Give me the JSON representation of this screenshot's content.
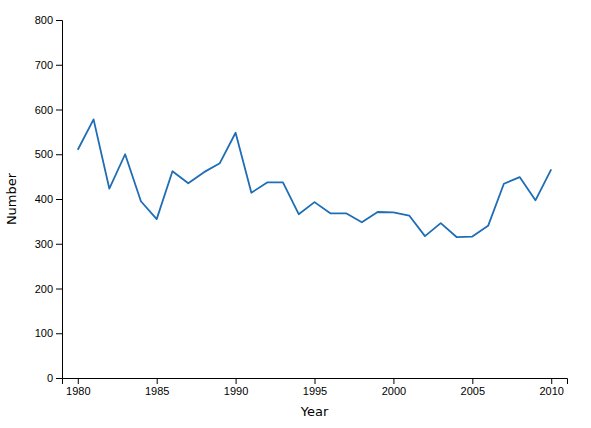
{
  "chart_data": {
    "type": "line",
    "xlabel": "Year",
    "ylabel": "Number",
    "x": [
      1980,
      1981,
      1982,
      1983,
      1984,
      1985,
      1986,
      1987,
      1988,
      1989,
      1990,
      1991,
      1992,
      1993,
      1994,
      1995,
      1996,
      1997,
      1998,
      1999,
      2000,
      2001,
      2002,
      2003,
      2004,
      2005,
      2006,
      2007,
      2008,
      2009,
      2010
    ],
    "values": [
      510,
      578,
      423,
      500,
      395,
      355,
      462,
      435,
      460,
      480,
      548,
      414,
      437,
      437,
      366,
      393,
      368,
      368,
      348,
      371,
      370,
      363,
      317,
      346,
      315,
      316,
      340,
      434,
      449,
      397,
      466
    ],
    "color": "#1f6db5",
    "xlim": [
      1979,
      2011
    ],
    "ylim": [
      0,
      800
    ],
    "xticks": [
      1980,
      1985,
      1990,
      1995,
      2000,
      2005,
      2010
    ],
    "yticks": [
      0,
      100,
      200,
      300,
      400,
      500,
      600,
      700,
      800
    ]
  }
}
